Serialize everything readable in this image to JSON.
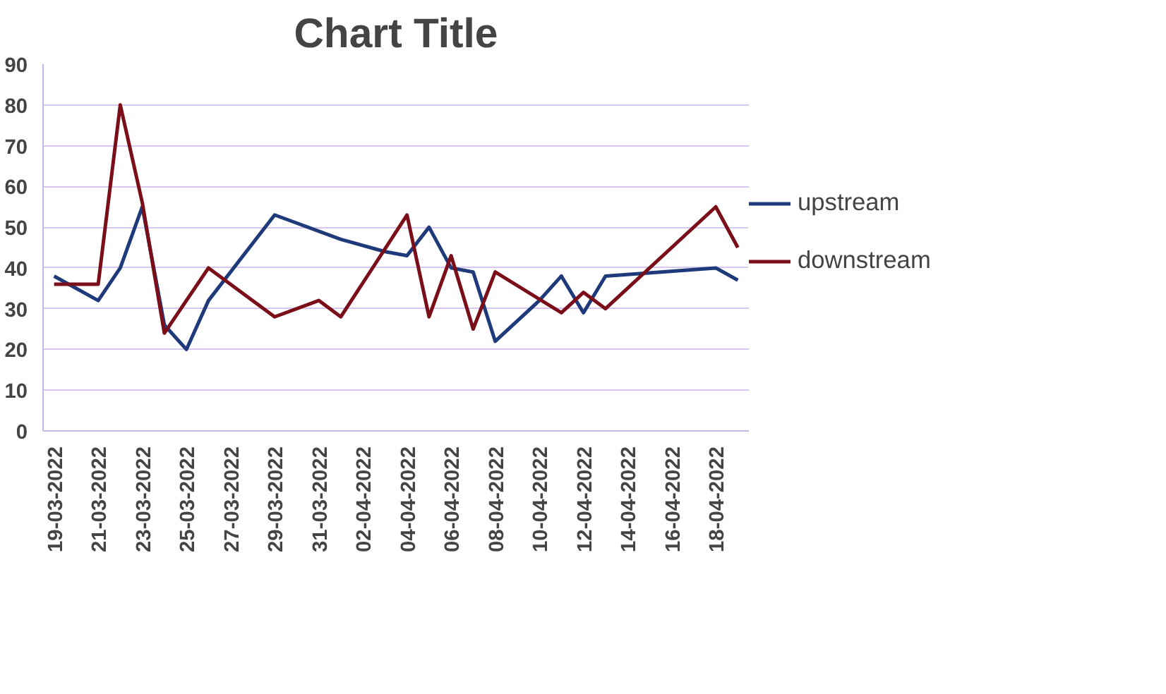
{
  "chart_data": {
    "type": "line",
    "title": "Chart Title",
    "xlim": [
      "2022-03-18T12:00",
      "2022-04-19T12:00"
    ],
    "xticks": [
      {
        "value": "2022-03-19",
        "label": "19-03-2022"
      },
      {
        "value": "2022-03-21",
        "label": "21-03-2022"
      },
      {
        "value": "2022-03-23",
        "label": "23-03-2022"
      },
      {
        "value": "2022-03-25",
        "label": "25-03-2022"
      },
      {
        "value": "2022-03-27",
        "label": "27-03-2022"
      },
      {
        "value": "2022-03-29",
        "label": "29-03-2022"
      },
      {
        "value": "2022-03-31",
        "label": "31-03-2022"
      },
      {
        "value": "2022-04-02",
        "label": "02-04-2022"
      },
      {
        "value": "2022-04-04",
        "label": "04-04-2022"
      },
      {
        "value": "2022-04-06",
        "label": "06-04-2022"
      },
      {
        "value": "2022-04-08",
        "label": "08-04-2022"
      },
      {
        "value": "2022-04-10",
        "label": "10-04-2022"
      },
      {
        "value": "2022-04-12",
        "label": "12-04-2022"
      },
      {
        "value": "2022-04-14",
        "label": "14-04-2022"
      },
      {
        "value": "2022-04-16",
        "label": "16-04-2022"
      },
      {
        "value": "2022-04-18",
        "label": "18-04-2022"
      }
    ],
    "ylim": [
      0,
      90
    ],
    "yticks": [
      0,
      10,
      20,
      30,
      40,
      50,
      60,
      70,
      80,
      90
    ],
    "grid": "y",
    "legend": "right",
    "marker": "none",
    "line_style": "solid",
    "series": [
      {
        "name": "upstream",
        "color": "#1f3a7a",
        "x": [
          "2022-03-19",
          "2022-03-21",
          "2022-03-22",
          "2022-03-23",
          "2022-03-24",
          "2022-03-25",
          "2022-03-26",
          "2022-03-29",
          "2022-04-01",
          "2022-04-03",
          "2022-04-04",
          "2022-04-05",
          "2022-04-06",
          "2022-04-07",
          "2022-04-08",
          "2022-04-10",
          "2022-04-11",
          "2022-04-12",
          "2022-04-13",
          "2022-04-18",
          "2022-04-19"
        ],
        "values": [
          38,
          32,
          40,
          55,
          26,
          20,
          32,
          53,
          47,
          44,
          43,
          50,
          40,
          39,
          22,
          32,
          38,
          29,
          38,
          40,
          37
        ]
      },
      {
        "name": "downstream",
        "color": "#7a0f1a",
        "x": [
          "2022-03-19",
          "2022-03-21",
          "2022-03-22",
          "2022-03-23",
          "2022-03-24",
          "2022-03-26",
          "2022-03-29",
          "2022-03-31",
          "2022-04-01",
          "2022-04-04",
          "2022-04-05",
          "2022-04-06",
          "2022-04-07",
          "2022-04-08",
          "2022-04-11",
          "2022-04-12",
          "2022-04-13",
          "2022-04-18",
          "2022-04-19"
        ],
        "values": [
          36,
          36,
          80,
          56,
          24,
          40,
          28,
          32,
          28,
          53,
          28,
          43,
          25,
          39,
          29,
          34,
          30,
          55,
          45
        ]
      }
    ]
  }
}
